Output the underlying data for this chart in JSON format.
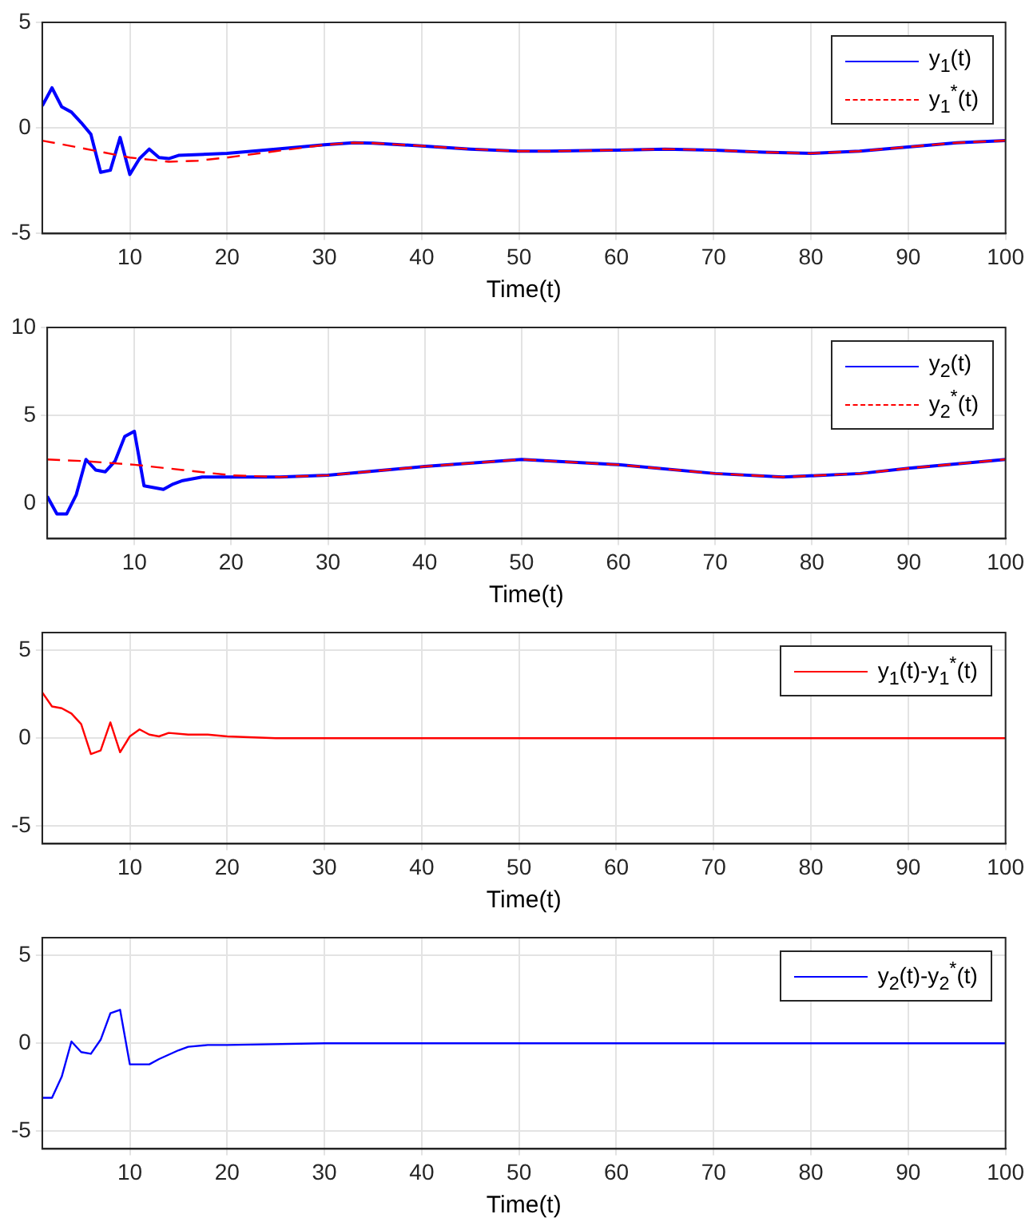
{
  "chart_data": [
    {
      "type": "line",
      "xlabel": "Time(t)",
      "xlim": [
        1,
        100
      ],
      "xticks": [
        10,
        20,
        30,
        40,
        50,
        60,
        70,
        80,
        90,
        100
      ],
      "ylim": [
        -5,
        5
      ],
      "yticks": [
        -5,
        0,
        5
      ],
      "grid": true,
      "legend": "top right",
      "marker": "none",
      "series": [
        {
          "name": "y$_{1}$(t)",
          "color": "#0000ff",
          "line_style": "solid",
          "x": [
            1,
            2,
            3,
            4,
            5,
            6,
            7,
            8,
            9,
            10,
            11,
            12,
            13,
            14,
            15,
            20,
            25,
            30,
            33,
            35,
            40,
            45,
            50,
            53,
            60,
            65,
            70,
            75,
            80,
            85,
            90,
            95,
            100
          ],
          "values": [
            1.05,
            1.9,
            1.0,
            0.75,
            0.25,
            -0.3,
            -2.1,
            -2.0,
            -0.45,
            -2.2,
            -1.45,
            -1.0,
            -1.4,
            -1.45,
            -1.3,
            -1.2,
            -1.0,
            -0.8,
            -0.7,
            -0.72,
            -0.85,
            -1.0,
            -1.1,
            -1.1,
            -1.05,
            -1.0,
            -1.05,
            -1.15,
            -1.2,
            -1.1,
            -0.9,
            -0.7,
            -0.6
          ]
        },
        {
          "name": "y$_{1}$$^{*}$(t)",
          "color": "#ff0000",
          "line_style": "dashed",
          "x": [
            1,
            5,
            10,
            14,
            17,
            20,
            25,
            30,
            33,
            35,
            40,
            45,
            50,
            53,
            60,
            65,
            70,
            75,
            80,
            85,
            90,
            95,
            100
          ],
          "values": [
            -0.6,
            -0.95,
            -1.4,
            -1.6,
            -1.55,
            -1.4,
            -1.1,
            -0.8,
            -0.7,
            -0.72,
            -0.85,
            -1.0,
            -1.1,
            -1.1,
            -1.05,
            -1.0,
            -1.05,
            -1.15,
            -1.2,
            -1.1,
            -0.9,
            -0.7,
            -0.6
          ]
        }
      ]
    },
    {
      "type": "line",
      "xlabel": "Time(t)",
      "xlim": [
        1,
        100
      ],
      "xticks": [
        10,
        20,
        30,
        40,
        50,
        60,
        70,
        80,
        90,
        100
      ],
      "ylim": [
        -2,
        10
      ],
      "yticks": [
        0,
        5,
        10
      ],
      "grid": true,
      "legend": "top right",
      "marker": "none",
      "series": [
        {
          "name": "y$_{2}$(t)",
          "color": "#0000ff",
          "line_style": "solid",
          "x": [
            1,
            2,
            3,
            4,
            5,
            6,
            7,
            8,
            9,
            10,
            11,
            12,
            13,
            14,
            15,
            17,
            20,
            25,
            30,
            40,
            50,
            60,
            70,
            77,
            85,
            90,
            100
          ],
          "values": [
            0.4,
            -0.6,
            -0.6,
            0.5,
            2.5,
            1.9,
            1.8,
            2.4,
            3.8,
            4.1,
            1.0,
            0.9,
            0.8,
            1.1,
            1.3,
            1.5,
            1.5,
            1.5,
            1.6,
            2.1,
            2.5,
            2.2,
            1.7,
            1.5,
            1.7,
            2.0,
            2.5
          ]
        },
        {
          "name": "y$_{2}$$^{*}$(t)",
          "color": "#ff0000",
          "line_style": "dashed",
          "x": [
            1,
            5,
            10,
            15,
            20,
            25,
            30,
            40,
            50,
            60,
            70,
            77,
            85,
            90,
            100
          ],
          "values": [
            2.5,
            2.4,
            2.2,
            1.9,
            1.6,
            1.5,
            1.6,
            2.1,
            2.5,
            2.2,
            1.7,
            1.5,
            1.7,
            2.0,
            2.5
          ]
        }
      ]
    },
    {
      "type": "line",
      "xlabel": "Time(t)",
      "xlim": [
        1,
        100
      ],
      "xticks": [
        10,
        20,
        30,
        40,
        50,
        60,
        70,
        80,
        90,
        100
      ],
      "ylim": [
        -6,
        6
      ],
      "yticks": [
        -5,
        0,
        5
      ],
      "grid": true,
      "legend": "top right",
      "marker": "none",
      "series": [
        {
          "name": "y$_{1}$(t)-y$_{1}$$^{*}$(t)",
          "color": "#ff0000",
          "line_style": "solid",
          "x": [
            1,
            2,
            3,
            4,
            5,
            6,
            7,
            8,
            9,
            10,
            11,
            12,
            13,
            14,
            16,
            18,
            20,
            25,
            30,
            50,
            60,
            75,
            100
          ],
          "values": [
            2.6,
            1.8,
            1.7,
            1.4,
            0.8,
            -0.9,
            -0.7,
            0.9,
            -0.8,
            0.1,
            0.5,
            0.2,
            0.1,
            0.3,
            0.2,
            0.2,
            0.1,
            0.0,
            0.0,
            0.0,
            0.0,
            0.0,
            0.0
          ]
        }
      ]
    },
    {
      "type": "line",
      "xlabel": "Time(t)",
      "xlim": [
        1,
        100
      ],
      "xticks": [
        10,
        20,
        30,
        40,
        50,
        60,
        70,
        80,
        90,
        100
      ],
      "ylim": [
        -6,
        6
      ],
      "yticks": [
        -5,
        0,
        5
      ],
      "grid": true,
      "legend": "top right",
      "marker": "none",
      "series": [
        {
          "name": "y$_{2}$(t)-y$_{2}$$^{*}$(t)",
          "color": "#0000ff",
          "line_style": "solid",
          "x": [
            1,
            2,
            3,
            4,
            5,
            6,
            7,
            8,
            9,
            10,
            12,
            13,
            15,
            16,
            18,
            20,
            30,
            50,
            70,
            90,
            100
          ],
          "values": [
            -3.1,
            -3.1,
            -1.9,
            0.1,
            -0.5,
            -0.6,
            0.2,
            1.7,
            1.9,
            -1.2,
            -1.2,
            -0.9,
            -0.4,
            -0.2,
            -0.1,
            -0.1,
            0.0,
            0.0,
            0.0,
            0.0,
            0.0
          ]
        }
      ]
    }
  ]
}
